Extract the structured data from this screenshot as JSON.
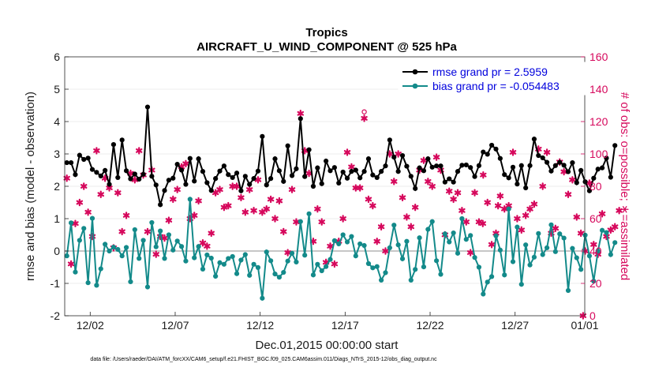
{
  "chart_data": {
    "type": "line",
    "title_line1": "Tropics",
    "title_line2": "AIRCRAFT_U_WIND_COMPONENT @ 525 hPa",
    "xlabel": "Dec.01,2015 00:00:00 start",
    "ylabel_left": "rmse and bias (model - observation)",
    "ylabel_right": "# of obs: o=possible; ∗=assimilated",
    "xlim": [
      0.5,
      31.1
    ],
    "ylim_left": [
      -2,
      6
    ],
    "ylim_right": [
      0,
      160
    ],
    "x_ticks": [
      {
        "value": 2,
        "label": "12/02"
      },
      {
        "value": 7,
        "label": "12/07"
      },
      {
        "value": 12,
        "label": "12/12"
      },
      {
        "value": 17,
        "label": "12/17"
      },
      {
        "value": 22,
        "label": "12/22"
      },
      {
        "value": 27,
        "label": "12/27"
      },
      {
        "value": 32,
        "label": "01/01"
      }
    ],
    "y_ticks_left": [
      "-2",
      "-1",
      "0",
      "1",
      "2",
      "3",
      "4",
      "5",
      "6"
    ],
    "y_ticks_right": [
      "0",
      "20",
      "40",
      "60",
      "80",
      "100",
      "120",
      "140",
      "160"
    ],
    "legend": [
      {
        "label": "rmse grand pr = 2.5959",
        "color": "#000000"
      },
      {
        "label": "bias grand pr = -0.054483",
        "color": "#138a8a"
      }
    ],
    "colors": {
      "rmse": "#000000",
      "bias": "#138a8a",
      "obs": "#d6085c",
      "zero_line": "#b3b3b3",
      "grid": "#d9d9d9"
    },
    "time_step_days": 0.25,
    "time_start": 0.625,
    "series": [
      {
        "name": "rmse",
        "axis": "left",
        "values": [
          2.73,
          2.73,
          2.36,
          2.96,
          2.83,
          2.87,
          2.52,
          2.43,
          2.32,
          2.49,
          2.06,
          3.29,
          2.27,
          3.43,
          2.48,
          2.23,
          2.38,
          2.22,
          2.37,
          4.45,
          2.31,
          2.04,
          1.43,
          1.87,
          2.19,
          2.25,
          2.68,
          2.5,
          2.06,
          2.86,
          2.16,
          2.85,
          2.46,
          2.11,
          1.87,
          2.24,
          2.47,
          2.63,
          2.36,
          2.27,
          2.41,
          1.86,
          2.31,
          2.06,
          2.24,
          2.47,
          3.54,
          2.04,
          2.24,
          2.85,
          2.48,
          2.15,
          3.25,
          2.33,
          2.54,
          4.09,
          2.3,
          3.13,
          2.0,
          2.57,
          2.08,
          2.78,
          2.48,
          2.58,
          2.1,
          2.44,
          2.25,
          2.46,
          2.5,
          2.26,
          2.46,
          2.85,
          2.35,
          2.27,
          2.46,
          2.63,
          3.43,
          2.9,
          2.46,
          2.95,
          2.62,
          2.31,
          1.93,
          2.57,
          2.48,
          2.85,
          2.59,
          2.63,
          2.63,
          2.13,
          2.23,
          2.13,
          2.46,
          2.65,
          2.66,
          2.58,
          2.3,
          2.64,
          3.06,
          2.99,
          3.27,
          3.15,
          2.86,
          2.36,
          2.26,
          2.59,
          2.07,
          2.64,
          1.95,
          2.64,
          3.46,
          2.95,
          2.88,
          2.74,
          2.47,
          2.64,
          2.74,
          2.65,
          2.45,
          2.73,
          2.11,
          2.49,
          2.14,
          1.86,
          2.25,
          2.53,
          2.57,
          2.87,
          2.28,
          3.26
        ]
      },
      {
        "name": "bias",
        "axis": "left",
        "values": [
          -0.15,
          0.87,
          -0.65,
          0.33,
          0.7,
          -0.98,
          1.01,
          -1.06,
          -0.55,
          0.21,
          0.0,
          0.12,
          0.05,
          -0.15,
          0.11,
          -0.95,
          0.66,
          -0.23,
          0.33,
          -1.11,
          0.88,
          0.13,
          0.62,
          -0.23,
          0.5,
          0.03,
          0.31,
          0.14,
          -0.31,
          1.6,
          -0.21,
          0.14,
          -0.56,
          -0.12,
          -0.22,
          -0.78,
          -0.36,
          -0.41,
          -0.23,
          -0.17,
          -0.7,
          -0.28,
          -0.11,
          -0.75,
          -0.41,
          -0.51,
          -1.46,
          -0.03,
          -0.3,
          -0.71,
          -0.81,
          -0.66,
          -0.31,
          -0.07,
          -0.34,
          0.91,
          -0.13,
          1.15,
          -0.74,
          -0.41,
          -0.61,
          -0.48,
          -0.26,
          0.32,
          0.22,
          0.5,
          0.28,
          0.45,
          -0.15,
          0.22,
          0.17,
          -0.39,
          -0.52,
          -0.48,
          -0.9,
          -0.67,
          0.1,
          0.8,
          0.19,
          -0.24,
          0.3,
          -0.9,
          -0.57,
          0.41,
          -0.49,
          0.67,
          0.91,
          -0.3,
          -0.72,
          0.53,
          0.28,
          0.56,
          -0.07,
          1.0,
          0.36,
          0.48,
          -0.2,
          -0.5,
          -1.33,
          -0.96,
          -0.79,
          0.47,
          0.03,
          -0.74,
          1.3,
          -0.33,
          0.74,
          -1.03,
          0.19,
          -0.43,
          -0.19,
          0.54,
          -0.11,
          0.1,
          0.81,
          -0.02,
          0.53,
          0.4,
          -1.22,
          0.08,
          -0.21,
          -0.57,
          0.49,
          -0.15,
          -0.93,
          0.0,
          0.64,
          0.57,
          -0.11,
          0.26
        ]
      },
      {
        "name": "obs_assimilated",
        "axis": "right",
        "values": [
          85,
          32,
          57,
          70,
          80,
          64,
          49,
          102,
          75,
          85,
          79,
          42,
          76,
          52,
          62,
          88,
          84,
          102,
          87,
          52,
          90,
          38,
          49,
          48,
          59,
          72,
          78,
          92,
          94,
          60,
          62,
          71,
          45,
          43,
          51,
          76,
          78,
          67,
          68,
          80,
          80,
          73,
          64,
          78,
          65,
          84,
          64,
          66,
          72,
          60,
          71,
          52,
          39,
          78,
          58,
          125,
          102,
          88,
          46,
          66,
          58,
          33,
          43,
          32,
          46,
          60,
          101,
          92,
          79,
          79,
          122,
          72,
          68,
          46,
          55,
          40,
          100,
          83,
          100,
          73,
          61,
          55,
          67,
          90,
          96,
          83,
          80,
          98,
          90,
          50,
          77,
          72,
          76,
          65,
          58,
          39,
          76,
          58,
          87,
          70,
          44,
          51,
          74,
          66,
          68,
          101,
          60,
          53,
          62,
          66,
          69,
          103,
          80,
          101,
          51,
          54,
          95,
          89,
          75,
          84,
          61,
          51,
          40,
          82,
          44,
          38,
          63,
          49,
          53,
          55,
          65
        ]
      },
      {
        "name": "obs_possible",
        "axis": "right",
        "values": [
          85,
          32,
          57,
          70,
          80,
          64,
          49,
          102,
          75,
          85,
          79,
          42,
          76,
          52,
          62,
          88,
          84,
          102,
          87,
          52,
          90,
          38,
          49,
          48,
          59,
          72,
          78,
          92,
          94,
          60,
          62,
          71,
          45,
          43,
          51,
          76,
          78,
          67,
          68,
          80,
          80,
          73,
          64,
          78,
          65,
          84,
          64,
          66,
          72,
          60,
          71,
          52,
          39,
          78,
          58,
          125,
          102,
          88,
          46,
          66,
          58,
          33,
          43,
          32,
          46,
          60,
          101,
          92,
          79,
          79,
          126,
          72,
          68,
          46,
          55,
          40,
          100,
          83,
          100,
          73,
          61,
          55,
          67,
          90,
          96,
          83,
          80,
          98,
          90,
          50,
          77,
          72,
          76,
          65,
          58,
          39,
          76,
          58,
          87,
          70,
          44,
          51,
          74,
          66,
          68,
          101,
          60,
          53,
          62,
          66,
          69,
          103,
          80,
          101,
          51,
          54,
          95,
          89,
          75,
          84,
          61,
          51,
          40,
          82,
          44,
          38,
          63,
          49,
          53,
          55,
          65
        ]
      }
    ],
    "extra_assimilated_points": [
      {
        "x": 31.0,
        "y": 0
      },
      {
        "x": 25.1,
        "y": 57
      },
      {
        "x": 26.0,
        "y": 68
      }
    ]
  },
  "footnote": "data file: /Users/raeder/DAI/ATM_forcXX/CAM6_setup/f.e21.FHIST_BGC.f09_025.CAM6assim.011/Diags_NTrS_2015-12/obs_diag_output.nc"
}
